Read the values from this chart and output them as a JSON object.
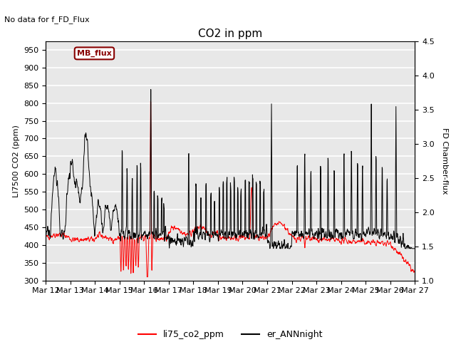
{
  "title": "CO2 in ppm",
  "suptitle": "No data for f_FD_Flux",
  "ylabel_left": "LI7500 CO2 (ppm)",
  "ylabel_right": "FD Chamber-flux",
  "ylim_left": [
    300,
    975
  ],
  "ylim_right": [
    1.0,
    4.5
  ],
  "yticks_left": [
    300,
    350,
    400,
    450,
    500,
    550,
    600,
    650,
    700,
    750,
    800,
    850,
    900,
    950
  ],
  "yticks_right": [
    1.0,
    1.5,
    2.0,
    2.5,
    3.0,
    3.5,
    4.0,
    4.5
  ],
  "xtick_labels": [
    "Mar 12",
    "Mar 13",
    "Mar 14",
    "Mar 15",
    "Mar 16",
    "Mar 17",
    "Mar 18",
    "Mar 19",
    "Mar 20",
    "Mar 21",
    "Mar 22",
    "Mar 23",
    "Mar 24",
    "Mar 25",
    "Mar 26",
    "Mar 27"
  ],
  "legend_entries": [
    "li75_co2_ppm",
    "er_ANNnight"
  ],
  "line_colors": [
    "red",
    "black"
  ],
  "legend_box_label": "MB_flux",
  "legend_box_color": "#880000",
  "background_color": "#e8e8e8",
  "grid_color": "white",
  "seed": 42
}
